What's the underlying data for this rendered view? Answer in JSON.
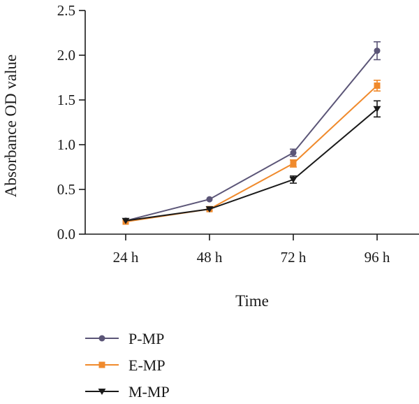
{
  "chart_data": {
    "type": "line",
    "xlabel": "Time",
    "ylabel": "Absorbance OD value",
    "categories": [
      "24 h",
      "48 h",
      "72 h",
      "96 h"
    ],
    "ylim": [
      0,
      2.5
    ],
    "yticks": [
      "0.0",
      "0.5",
      "1.0",
      "1.5",
      "2.0",
      "2.5"
    ],
    "grid": false,
    "legend_position": "bottom-left",
    "series": [
      {
        "name": "P-MP",
        "color": "#5b5577",
        "marker": "circle",
        "values": [
          0.15,
          0.39,
          0.91,
          2.05
        ],
        "errors": [
          0.02,
          0.02,
          0.04,
          0.1
        ]
      },
      {
        "name": "E-MP",
        "color": "#f08a2c",
        "marker": "square",
        "values": [
          0.14,
          0.28,
          0.79,
          1.66
        ],
        "errors": [
          0.02,
          0.02,
          0.04,
          0.06
        ]
      },
      {
        "name": "M-MP",
        "color": "#1a1a1a",
        "marker": "triangle-down",
        "values": [
          0.15,
          0.28,
          0.61,
          1.4
        ],
        "errors": [
          0.02,
          0.02,
          0.04,
          0.09
        ]
      }
    ]
  }
}
